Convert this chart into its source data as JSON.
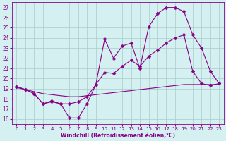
{
  "xlabel": "Windchill (Refroidissement éolien,°C)",
  "bg_color": "#d4f0f0",
  "grid_color": "#aacccc",
  "line_color": "#880088",
  "x_ticks": [
    0,
    1,
    2,
    3,
    4,
    5,
    6,
    7,
    8,
    9,
    10,
    11,
    12,
    13,
    14,
    15,
    16,
    17,
    18,
    19,
    20,
    21,
    22,
    23
  ],
  "y_ticks": [
    16,
    17,
    18,
    19,
    20,
    21,
    22,
    23,
    24,
    25,
    26,
    27
  ],
  "xlim": [
    -0.5,
    23.5
  ],
  "ylim": [
    15.5,
    27.5
  ],
  "series": [
    {
      "x": [
        0,
        1,
        2,
        3,
        4,
        5,
        6,
        7,
        8,
        9,
        10,
        11,
        12,
        13,
        14,
        15,
        16,
        17,
        18,
        19,
        20,
        21,
        22,
        23
      ],
      "y": [
        19.2,
        18.9,
        18.5,
        17.5,
        17.8,
        17.5,
        16.1,
        16.1,
        17.5,
        19.4,
        23.9,
        22.0,
        23.2,
        23.5,
        21.0,
        25.1,
        26.4,
        27.0,
        27.0,
        26.6,
        24.3,
        23.0,
        20.7,
        19.5
      ],
      "marker": true,
      "markersize": 2.5
    },
    {
      "x": [
        0,
        1,
        2,
        3,
        4,
        5,
        6,
        7,
        8,
        9,
        10,
        11,
        12,
        13,
        14,
        15,
        16,
        17,
        18,
        19,
        20,
        21,
        22,
        23
      ],
      "y": [
        19.2,
        18.9,
        18.5,
        17.5,
        17.7,
        17.5,
        17.5,
        17.7,
        18.2,
        19.4,
        20.6,
        20.5,
        21.2,
        21.8,
        21.2,
        22.2,
        22.8,
        23.5,
        24.0,
        24.3,
        20.7,
        19.5,
        19.3,
        19.5
      ],
      "marker": true,
      "markersize": 2.5
    },
    {
      "x": [
        0,
        1,
        2,
        3,
        4,
        5,
        6,
        7,
        8,
        9,
        10,
        11,
        12,
        13,
        14,
        15,
        16,
        17,
        18,
        19,
        20,
        21,
        22,
        23
      ],
      "y": [
        19.1,
        18.9,
        18.7,
        18.5,
        18.4,
        18.3,
        18.2,
        18.2,
        18.3,
        18.4,
        18.5,
        18.6,
        18.7,
        18.8,
        18.9,
        19.0,
        19.1,
        19.2,
        19.3,
        19.4,
        19.4,
        19.4,
        19.4,
        19.4
      ],
      "marker": false,
      "markersize": 0
    }
  ],
  "tick_fontsize": 5.5,
  "xlabel_fontsize": 5.5,
  "linewidth": 0.8
}
